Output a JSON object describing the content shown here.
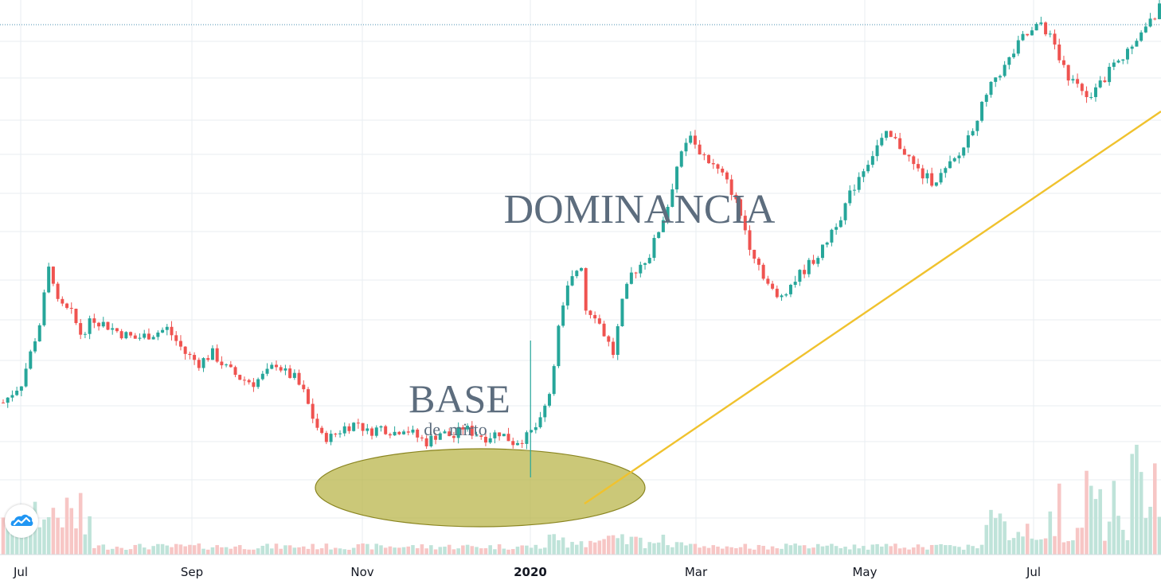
{
  "chart_data": {
    "type": "candlestick",
    "x_ticks": [
      {
        "label": "Jul",
        "bold": false
      },
      {
        "label": "Sep",
        "bold": false
      },
      {
        "label": "Nov",
        "bold": false
      },
      {
        "label": "2020",
        "bold": true
      },
      {
        "label": "Mar",
        "bold": false
      },
      {
        "label": "May",
        "bold": false
      },
      {
        "label": "Jul",
        "bold": false
      }
    ],
    "y_range": [
      0,
      100
    ],
    "series": [
      {
        "price_path": [
          [
            0,
            20
          ],
          [
            4,
            24
          ],
          [
            8,
            36
          ],
          [
            10,
            47
          ],
          [
            11,
            45
          ],
          [
            12,
            40
          ],
          [
            15,
            38
          ],
          [
            17,
            34
          ],
          [
            20,
            37
          ],
          [
            22,
            36
          ],
          [
            26,
            34
          ],
          [
            29,
            33
          ],
          [
            33,
            34
          ],
          [
            36,
            35
          ],
          [
            40,
            30
          ],
          [
            43,
            28
          ],
          [
            46,
            30
          ],
          [
            49,
            27
          ],
          [
            52,
            25
          ],
          [
            55,
            24
          ],
          [
            58,
            26
          ],
          [
            60,
            28
          ],
          [
            62,
            26
          ],
          [
            64,
            25
          ],
          [
            66,
            22
          ],
          [
            68,
            17
          ],
          [
            70,
            13
          ],
          [
            72,
            13
          ],
          [
            75,
            15
          ],
          [
            78,
            16
          ],
          [
            80,
            14
          ],
          [
            83,
            15
          ],
          [
            86,
            14
          ],
          [
            88,
            15
          ],
          [
            91,
            13
          ],
          [
            93,
            12
          ],
          [
            96,
            14
          ],
          [
            99,
            13
          ],
          [
            101,
            15
          ],
          [
            103,
            14
          ],
          [
            106,
            13
          ],
          [
            109,
            14
          ],
          [
            112,
            12
          ],
          [
            115,
            13
          ],
          [
            118,
            16
          ],
          [
            120,
            22
          ],
          [
            122,
            35
          ],
          [
            124,
            43
          ],
          [
            126,
            47
          ],
          [
            127,
            48
          ],
          [
            128,
            39
          ],
          [
            130,
            38
          ],
          [
            132,
            34
          ],
          [
            134,
            30
          ],
          [
            136,
            40
          ],
          [
            138,
            46
          ],
          [
            140,
            48
          ],
          [
            142,
            50
          ],
          [
            144,
            55
          ],
          [
            146,
            60
          ],
          [
            148,
            68
          ],
          [
            150,
            72
          ],
          [
            151,
            75
          ],
          [
            152,
            72
          ],
          [
            154,
            70
          ],
          [
            156,
            68
          ],
          [
            158,
            66
          ],
          [
            160,
            63
          ],
          [
            162,
            58
          ],
          [
            164,
            52
          ],
          [
            166,
            48
          ],
          [
            168,
            44
          ],
          [
            170,
            41
          ],
          [
            172,
            43
          ],
          [
            174,
            45
          ],
          [
            176,
            47
          ],
          [
            178,
            49
          ],
          [
            180,
            51
          ],
          [
            182,
            55
          ],
          [
            184,
            58
          ],
          [
            186,
            62
          ],
          [
            188,
            66
          ],
          [
            190,
            69
          ],
          [
            192,
            72
          ],
          [
            194,
            74
          ],
          [
            196,
            73
          ],
          [
            198,
            71
          ],
          [
            200,
            68
          ],
          [
            202,
            66
          ],
          [
            204,
            65
          ],
          [
            206,
            66
          ],
          [
            208,
            68
          ],
          [
            210,
            70
          ],
          [
            212,
            74
          ],
          [
            214,
            78
          ],
          [
            216,
            82
          ],
          [
            218,
            86
          ],
          [
            220,
            88
          ],
          [
            222,
            91
          ],
          [
            224,
            94
          ],
          [
            226,
            95
          ],
          [
            228,
            97
          ],
          [
            230,
            94
          ],
          [
            232,
            90
          ],
          [
            234,
            86
          ],
          [
            236,
            84
          ],
          [
            238,
            82
          ],
          [
            240,
            84
          ],
          [
            242,
            86
          ],
          [
            244,
            88
          ],
          [
            246,
            90
          ],
          [
            248,
            92
          ],
          [
            250,
            95
          ],
          [
            252,
            97
          ],
          [
            254,
            100
          ]
        ],
        "note": ""
      }
    ],
    "annotations": [
      {
        "type": "text",
        "text": "DOMINANCIA",
        "size": "large"
      },
      {
        "type": "text",
        "text": "BASE",
        "size": "medium"
      },
      {
        "type": "text",
        "text": "de  mirto",
        "size": "small"
      },
      {
        "type": "ellipse",
        "label": "",
        "fill": "#b5b13f",
        "stroke": "#8a8520"
      },
      {
        "type": "trendline",
        "color": "#f0c22e"
      }
    ],
    "colors": {
      "up": "#26a69a",
      "down": "#ef5350",
      "volume_up": "#bfe3d9",
      "volume_down": "#f7c6c5",
      "grid": "#e8eef2",
      "dotted_line": "#4a8fb0",
      "axis_text": "#131722",
      "annotation_text": "#5d6d7e"
    },
    "title": "",
    "xlabel": "",
    "ylabel": "",
    "grid": true,
    "legend": "none"
  },
  "brand": {
    "logo_icon": "tradingview-cloud-icon"
  }
}
